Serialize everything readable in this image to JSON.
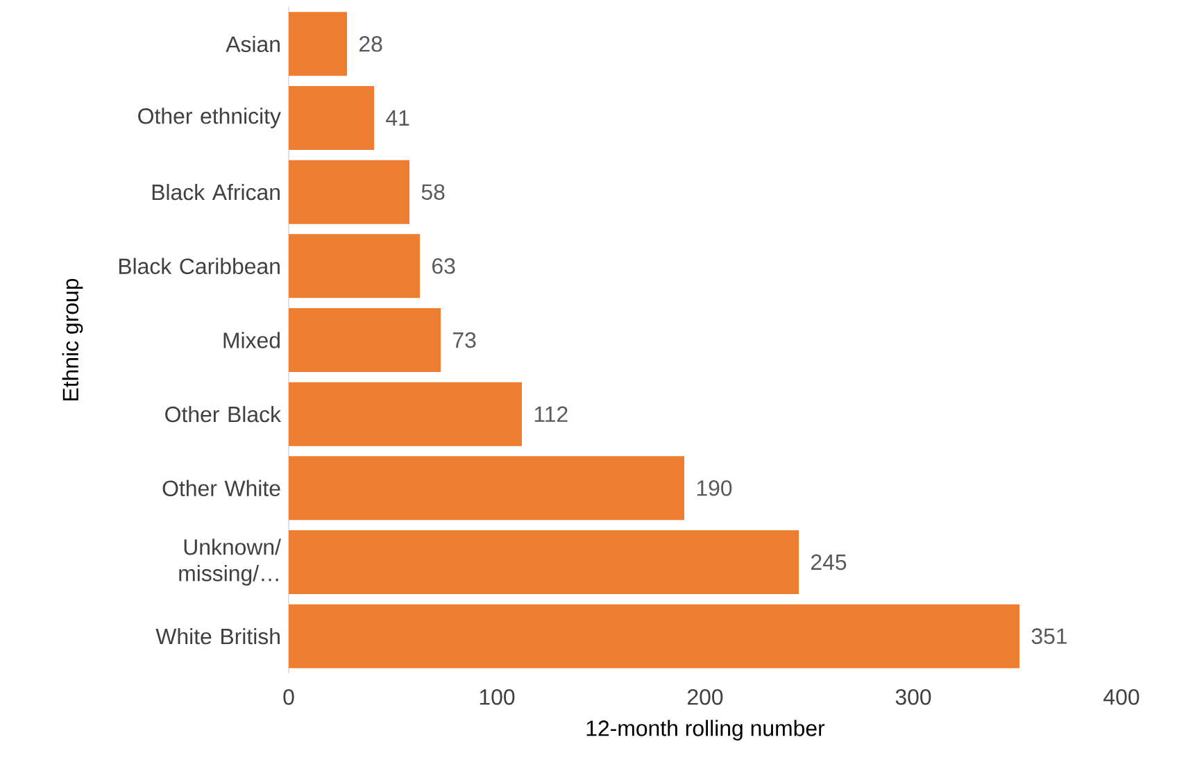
{
  "chart_data": {
    "type": "bar",
    "orientation": "horizontal",
    "xlabel": "12-month rolling number",
    "ylabel": "Ethnic group",
    "categories": [
      "Asian",
      "Other ethnicity",
      "Black African",
      "Black Caribbean",
      "Mixed",
      "Other Black",
      "Other White",
      "Unknown/ missing/…",
      "White British"
    ],
    "values": [
      28,
      41,
      58,
      63,
      73,
      112,
      190,
      245,
      351
    ],
    "color": "#ed7d31",
    "xlim": [
      0,
      400
    ],
    "xticks": [
      0,
      100,
      200,
      300,
      400
    ],
    "data_labels": true
  }
}
